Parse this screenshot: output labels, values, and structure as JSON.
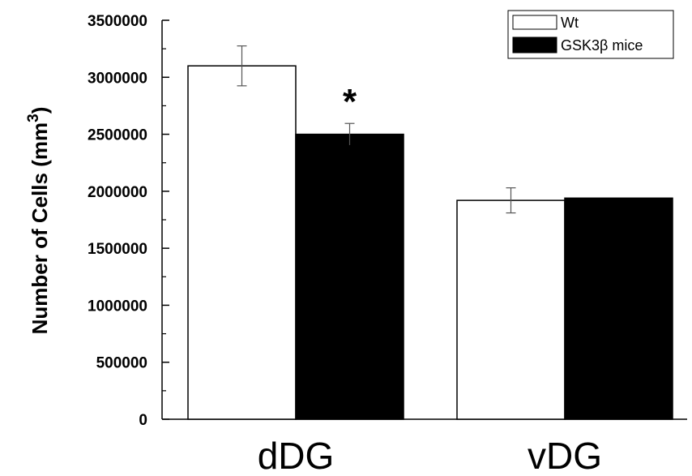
{
  "chart_data": {
    "type": "bar",
    "title": "",
    "xlabel": "",
    "ylabel": "Number of Cells (mm",
    "ylabel_sup": "3",
    "ylabel_close": ")",
    "categories": [
      "dDG",
      "vDG"
    ],
    "series": [
      {
        "name": "Wt",
        "values": [
          3100000,
          1920000
        ],
        "errors": [
          175000,
          110000
        ],
        "color": "#ffffff"
      },
      {
        "name": "GSK3β mice",
        "values": [
          2500000,
          1940000
        ],
        "errors": [
          95000,
          0
        ],
        "color": "#000000"
      }
    ],
    "ylim": [
      0,
      3500000
    ],
    "yticks": [
      0,
      500000,
      1000000,
      1500000,
      2000000,
      2500000,
      3000000,
      3500000
    ],
    "ytick_labels": [
      "0",
      "500000",
      "1000000",
      "1500000",
      "2000000",
      "2500000",
      "3000000",
      "3500000"
    ],
    "grid": false,
    "legend_position": "top-right",
    "annotations": [
      {
        "text": "*",
        "category": "dDG",
        "series": "GSK3β mice"
      }
    ]
  }
}
